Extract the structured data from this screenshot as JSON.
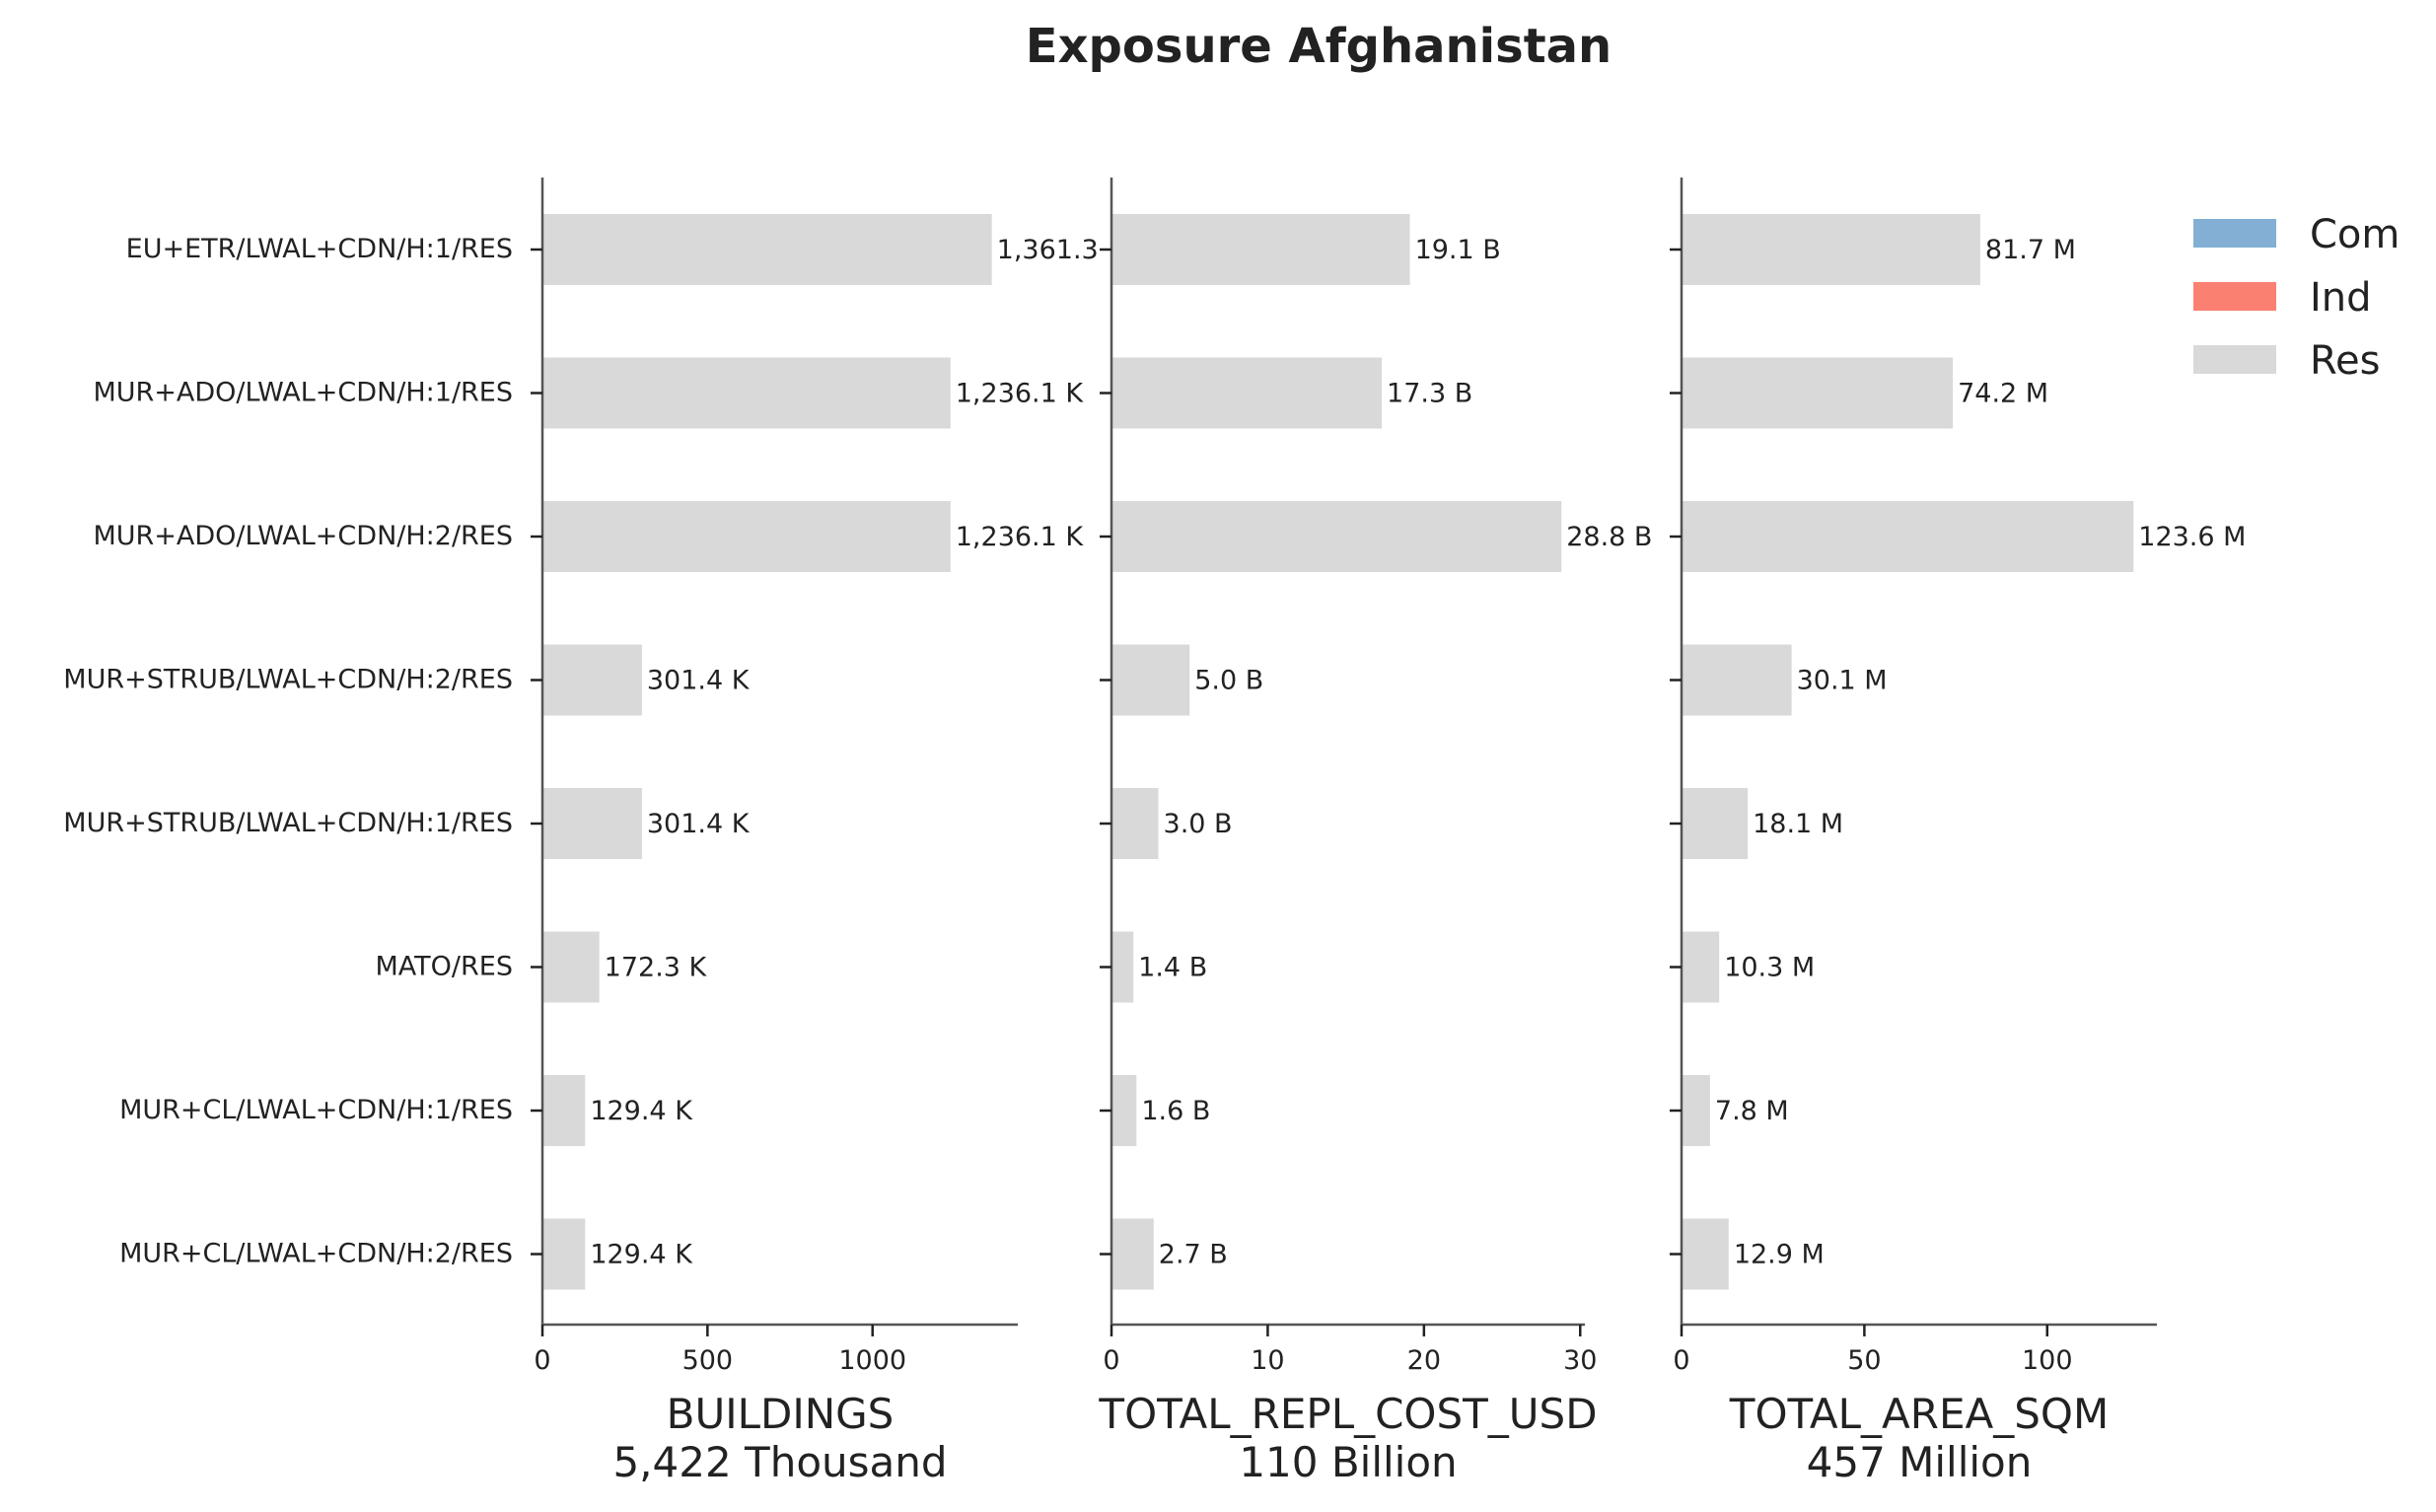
{
  "title": "Exposure Afghanistan",
  "legend": {
    "placement": "top-right",
    "items": [
      {
        "label": "Com",
        "color": "#82afd3"
      },
      {
        "label": "Ind",
        "color": "#fa8072"
      },
      {
        "label": "Res",
        "color": "#d9d9d9"
      }
    ]
  },
  "chart_data": {
    "type": "bar",
    "orientation": "horizontal",
    "title": "Exposure Afghanistan",
    "grid": false,
    "categories": [
      "EU+ETR/LWAL+CDN/H:1/RES",
      "MUR+ADO/LWAL+CDN/H:1/RES",
      "MUR+ADO/LWAL+CDN/H:2/RES",
      "MUR+STRUB/LWAL+CDN/H:2/RES",
      "MUR+STRUB/LWAL+CDN/H:1/RES",
      "MATO/RES",
      "MUR+CL/LWAL+CDN/H:1/RES",
      "MUR+CL/LWAL+CDN/H:2/RES"
    ],
    "panels": [
      {
        "xlabel": "BUILDINGS",
        "total_label": "5,422 Thousand",
        "xlim": [
          0,
          1440
        ],
        "ticks": [
          0,
          500,
          1000
        ],
        "tick_labels": [
          "0",
          "500",
          "1000"
        ],
        "series": [
          {
            "name": "Res",
            "color": "#d9d9d9",
            "values": [
              1361.3,
              1236.1,
              1236.1,
              301.4,
              301.4,
              172.3,
              129.4,
              129.4
            ]
          }
        ],
        "value_labels": [
          "1,361.3",
          "1,236.1 K",
          "1,236.1 K",
          "301.4 K",
          "301.4 K",
          "172.3 K",
          "129.4 K",
          "129.4 K"
        ]
      },
      {
        "xlabel": "TOTAL_REPL_COST_USD",
        "total_label": "110 Billion",
        "xlim": [
          0,
          30.3
        ],
        "ticks": [
          0,
          10,
          20,
          30
        ],
        "tick_labels": [
          "0",
          "10",
          "20",
          "30"
        ],
        "series": [
          {
            "name": "Res",
            "color": "#d9d9d9",
            "values": [
              19.1,
              17.3,
              28.8,
              5.0,
              3.0,
              1.4,
              1.6,
              2.7
            ]
          }
        ],
        "value_labels": [
          "19.1 B",
          "17.3 B",
          "28.8 B",
          "5.0 B",
          "3.0 B",
          "1.4 B",
          "1.6 B",
          "2.7 B"
        ]
      },
      {
        "xlabel": "TOTAL_AREA_SQM",
        "total_label": "457 Million",
        "xlim": [
          0,
          130
        ],
        "ticks": [
          0,
          50,
          100
        ],
        "tick_labels": [
          "0",
          "50",
          "100"
        ],
        "series": [
          {
            "name": "Res",
            "color": "#d9d9d9",
            "values": [
              81.7,
              74.2,
              123.6,
              30.1,
              18.1,
              10.3,
              7.8,
              12.9
            ]
          }
        ],
        "value_labels": [
          "81.7 M",
          "74.2 M",
          "123.6 M",
          "30.1 M",
          "18.1 M",
          "10.3 M",
          "7.8 M",
          "12.9 M"
        ]
      }
    ]
  }
}
